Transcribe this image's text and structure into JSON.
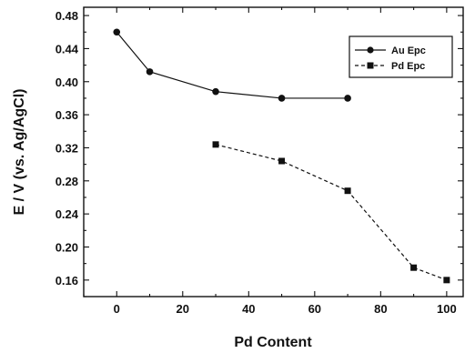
{
  "chart_data": {
    "type": "line",
    "xlabel": "Pd Content",
    "ylabel": "E / V (vs. Ag/AgCl)",
    "xlim": [
      -10,
      105
    ],
    "ylim": [
      0.14,
      0.49
    ],
    "x_ticks": [
      0,
      20,
      40,
      60,
      80,
      100
    ],
    "x_tick_labels": [
      "0",
      "20",
      "40",
      "60",
      "80",
      "100"
    ],
    "y_ticks": [
      0.16,
      0.2,
      0.24,
      0.28,
      0.32,
      0.36,
      0.4,
      0.44,
      0.48
    ],
    "y_tick_labels": [
      "0.16",
      "0.20",
      "0.24",
      "0.28",
      "0.32",
      "0.36",
      "0.40",
      "0.44",
      "0.48"
    ],
    "legend_position": "top-right",
    "grid": false,
    "series": [
      {
        "name": "Au Epc",
        "marker": "circle",
        "line_style": "solid",
        "x": [
          0,
          10,
          30,
          50,
          70
        ],
        "y": [
          0.46,
          0.412,
          0.388,
          0.38,
          0.38
        ]
      },
      {
        "name": "Pd Epc",
        "marker": "square",
        "line_style": "dashed",
        "x": [
          30,
          50,
          70,
          90,
          100
        ],
        "y": [
          0.324,
          0.304,
          0.268,
          0.175,
          0.16
        ]
      }
    ]
  }
}
